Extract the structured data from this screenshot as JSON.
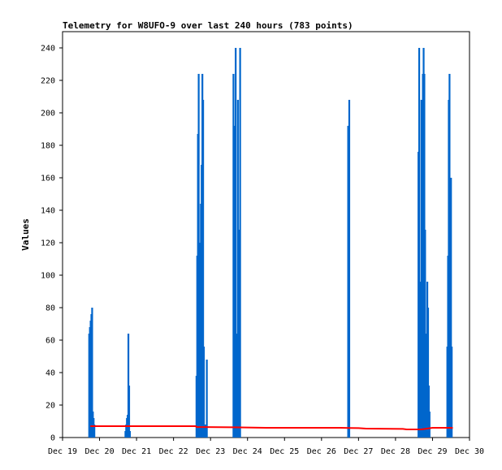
{
  "chart_data": {
    "type": "line",
    "title": "Telemetry for W8UFO-9 over last 240 hours (783 points)",
    "xlabel": "",
    "ylabel": "Values",
    "x_unit": "days",
    "x_range": [
      19,
      30
    ],
    "ylim": [
      0,
      250
    ],
    "x_ticks": [
      {
        "value": 19,
        "label": "Dec 19"
      },
      {
        "value": 20,
        "label": "Dec 20"
      },
      {
        "value": 21,
        "label": "Dec 21"
      },
      {
        "value": 22,
        "label": "Dec 22"
      },
      {
        "value": 23,
        "label": "Dec 23"
      },
      {
        "value": 24,
        "label": "Dec 24"
      },
      {
        "value": 25,
        "label": "Dec 25"
      },
      {
        "value": 26,
        "label": "Dec 26"
      },
      {
        "value": 27,
        "label": "Dec 27"
      },
      {
        "value": 28,
        "label": "Dec 28"
      },
      {
        "value": 29,
        "label": "Dec 29"
      },
      {
        "value": 30,
        "label": "Dec 30"
      }
    ],
    "y_ticks": [
      0,
      20,
      40,
      60,
      80,
      100,
      120,
      140,
      160,
      180,
      200,
      220,
      240
    ],
    "grid": false,
    "legend": "none",
    "series": [
      {
        "color": "#0066cc",
        "style": "impulse",
        "points": [
          [
            19.72,
            64
          ],
          [
            19.74,
            68
          ],
          [
            19.76,
            72
          ],
          [
            19.78,
            76
          ],
          [
            19.8,
            80
          ],
          [
            19.82,
            16
          ],
          [
            19.84,
            12
          ],
          [
            19.86,
            8
          ],
          [
            20.7,
            4
          ],
          [
            20.72,
            8
          ],
          [
            20.74,
            12
          ],
          [
            20.76,
            14
          ],
          [
            20.78,
            64
          ],
          [
            20.8,
            32
          ],
          [
            20.82,
            4
          ],
          [
            22.62,
            38
          ],
          [
            22.64,
            112
          ],
          [
            22.66,
            187
          ],
          [
            22.68,
            224
          ],
          [
            22.7,
            120
          ],
          [
            22.72,
            24
          ],
          [
            22.74,
            144
          ],
          [
            22.76,
            168
          ],
          [
            22.78,
            224
          ],
          [
            22.8,
            208
          ],
          [
            22.82,
            56
          ],
          [
            22.86,
            8
          ],
          [
            22.9,
            48
          ],
          [
            23.62,
            224
          ],
          [
            23.65,
            192
          ],
          [
            23.68,
            240
          ],
          [
            23.71,
            64
          ],
          [
            23.74,
            208
          ],
          [
            23.77,
            128
          ],
          [
            23.8,
            240
          ],
          [
            26.72,
            192
          ],
          [
            26.75,
            208
          ],
          [
            28.62,
            176
          ],
          [
            28.64,
            240
          ],
          [
            28.66,
            96
          ],
          [
            28.68,
            56
          ],
          [
            28.7,
            208
          ],
          [
            28.72,
            160
          ],
          [
            28.74,
            224
          ],
          [
            28.76,
            240
          ],
          [
            28.78,
            224
          ],
          [
            28.8,
            128
          ],
          [
            28.82,
            32
          ],
          [
            28.84,
            64
          ],
          [
            28.86,
            96
          ],
          [
            28.88,
            80
          ],
          [
            28.9,
            32
          ],
          [
            28.92,
            16
          ],
          [
            29.4,
            56
          ],
          [
            29.42,
            112
          ],
          [
            29.44,
            208
          ],
          [
            29.46,
            224
          ],
          [
            29.48,
            112
          ],
          [
            29.5,
            160
          ],
          [
            29.52,
            56
          ]
        ]
      },
      {
        "color": "#ff0000",
        "style": "line",
        "points": [
          [
            19.75,
            7
          ],
          [
            20.8,
            7
          ],
          [
            22.5,
            7
          ],
          [
            22.6,
            7
          ],
          [
            22.62,
            6.5
          ],
          [
            23.6,
            6.3
          ],
          [
            24.5,
            6
          ],
          [
            25.5,
            6
          ],
          [
            26.5,
            6
          ],
          [
            26.75,
            5.9
          ],
          [
            27.0,
            5.8
          ],
          [
            27.2,
            5.5
          ],
          [
            28.2,
            5.3
          ],
          [
            28.3,
            5
          ],
          [
            28.7,
            5
          ],
          [
            29.0,
            6
          ],
          [
            29.5,
            6
          ],
          [
            29.55,
            5.8
          ]
        ]
      }
    ]
  }
}
